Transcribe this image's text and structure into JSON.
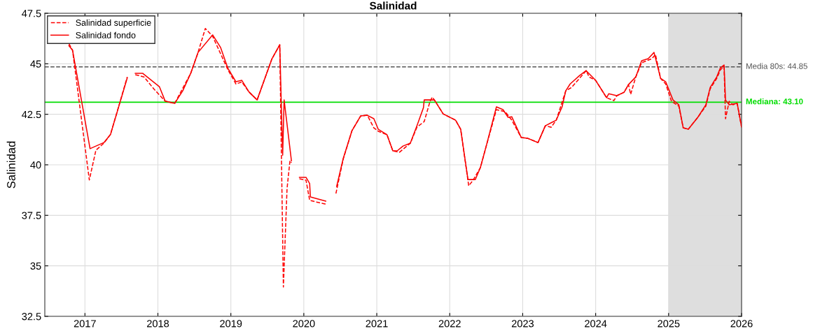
{
  "chart_data": {
    "type": "line",
    "title": "Salinidad",
    "ylabel": "Salinidad",
    "xlim": [
      2016.45,
      2026
    ],
    "xticks": [
      2017,
      2018,
      2019,
      2020,
      2021,
      2022,
      2023,
      2024,
      2025,
      2026
    ],
    "ylim": [
      32.5,
      47.5
    ],
    "yticks": [
      32.5,
      35,
      37.5,
      40,
      42.5,
      45,
      47.5
    ],
    "grid": true,
    "legend": "top left",
    "series": [
      {
        "name": "Salinidad superficie",
        "color": "#ff0000",
        "line_style": "dashed",
        "x": [
          2016.78,
          2016.83,
          2017.06,
          2017.15,
          2017.26,
          2017.35,
          2017.58,
          null,
          2017.69,
          2017.81,
          2017.95,
          2018.1,
          2018.23,
          2018.45,
          2018.55,
          2018.65,
          2018.75,
          2018.96,
          2019.07,
          2019.15,
          2019.25,
          2019.36,
          2019.56,
          2019.67,
          2019.72,
          2019.77,
          2019.81,
          2019.83,
          null,
          2019.94,
          2020.03,
          2020.08,
          2020.3,
          null,
          2020.44,
          2020.54,
          2020.66,
          2020.78,
          2020.87,
          2020.96,
          2021.02,
          2021.14,
          2021.22,
          2021.31,
          2021.46,
          2021.55,
          2021.65,
          2021.73,
          2021.76,
          2021.79,
          2021.91,
          2022.08,
          2022.15,
          2022.26,
          2022.32,
          2022.42,
          2022.49,
          2022.64,
          2022.76,
          2022.85,
          2022.98,
          2023.07,
          2023.21,
          2023.31,
          2023.39,
          2023.46,
          2023.59,
          2023.67,
          2023.87,
          2023.91,
          2024.0,
          2024.15,
          2024.25,
          2024.29,
          2024.39,
          2024.45,
          2024.48,
          2024.55,
          2024.63,
          2024.77,
          2024.82,
          2024.89,
          2024.96,
          2025.04,
          2025.14,
          2025.2,
          2025.27,
          2025.4,
          2025.51,
          2025.57,
          2025.66,
          2025.71,
          2025.76,
          2025.78,
          2025.83,
          2025.88,
          2025.94,
          2026.0
        ],
        "values": [
          46.0,
          45.67,
          39.25,
          40.72,
          41.07,
          41.5,
          44.35,
          null,
          44.46,
          44.35,
          43.73,
          43.15,
          43.04,
          44.53,
          45.56,
          46.75,
          46.36,
          44.7,
          44.0,
          44.1,
          43.6,
          43.21,
          45.22,
          45.94,
          33.95,
          38.82,
          40.2,
          40.1,
          null,
          39.31,
          39.24,
          38.24,
          38.05,
          null,
          38.58,
          40.28,
          41.69,
          42.42,
          42.45,
          41.83,
          41.66,
          41.49,
          40.69,
          40.62,
          41.07,
          41.86,
          42.14,
          43.14,
          43.35,
          43.21,
          42.52,
          42.21,
          41.76,
          38.96,
          39.24,
          39.86,
          40.79,
          42.73,
          42.63,
          42.21,
          41.35,
          41.31,
          41.1,
          41.93,
          41.86,
          42.21,
          43.66,
          43.83,
          44.66,
          44.35,
          44.18,
          43.32,
          43.18,
          43.42,
          43.59,
          43.97,
          43.49,
          44.35,
          45.05,
          45.25,
          45.46,
          44.28,
          44.0,
          43.14,
          42.9,
          41.83,
          41.76,
          42.35,
          42.9,
          43.76,
          44.28,
          44.7,
          44.87,
          42.28,
          43.14,
          42.97,
          43.04,
          41.87
        ]
      },
      {
        "name": "Salinidad fondo",
        "color": "#f80000",
        "line_style": "solid",
        "x": [
          2016.78,
          2016.83,
          2017.07,
          2017.26,
          2017.35,
          2017.58,
          null,
          2017.69,
          2017.79,
          2018.02,
          2018.1,
          2018.23,
          2018.34,
          2018.45,
          2018.55,
          2018.75,
          2018.86,
          2018.96,
          2019.07,
          2019.15,
          2019.25,
          2019.36,
          2019.56,
          2019.67,
          2019.71,
          2019.73,
          2019.83,
          null,
          2019.94,
          2020.03,
          2020.08,
          2020.09,
          2020.3,
          null,
          2020.45,
          2020.54,
          2020.66,
          2020.78,
          2020.87,
          2020.96,
          2021.02,
          2021.14,
          2021.22,
          2021.28,
          2021.36,
          2021.46,
          2021.55,
          2021.64,
          2021.65,
          2021.79,
          2021.91,
          2022.08,
          2022.15,
          2022.25,
          2022.35,
          2022.42,
          2022.49,
          2022.64,
          2022.73,
          2022.8,
          2022.85,
          2022.98,
          2023.07,
          2023.21,
          2023.31,
          2023.4,
          2023.46,
          2023.54,
          2023.59,
          2023.65,
          2023.78,
          2023.87,
          2024.0,
          2024.15,
          2024.18,
          2024.29,
          2024.39,
          2024.45,
          2024.55,
          2024.63,
          2024.72,
          2024.8,
          2024.89,
          2024.96,
          2025.06,
          2025.14,
          2025.2,
          2025.27,
          2025.4,
          2025.51,
          2025.57,
          2025.66,
          2025.71,
          2025.76,
          2025.78,
          2025.83,
          2025.94,
          2026.0
        ],
        "values": [
          45.9,
          45.67,
          40.8,
          41.1,
          41.5,
          44.3,
          null,
          44.53,
          44.53,
          43.87,
          43.15,
          43.04,
          43.66,
          44.53,
          45.56,
          46.43,
          45.8,
          44.77,
          44.11,
          44.18,
          43.6,
          43.21,
          45.22,
          45.94,
          40.48,
          43.21,
          40.2,
          null,
          39.38,
          39.38,
          39.07,
          38.41,
          38.2,
          null,
          38.93,
          40.31,
          41.69,
          42.42,
          42.45,
          42.28,
          41.76,
          41.49,
          40.69,
          40.69,
          40.93,
          41.07,
          41.93,
          42.83,
          43.21,
          43.21,
          42.52,
          42.21,
          41.76,
          39.27,
          39.27,
          39.86,
          40.79,
          42.87,
          42.73,
          42.35,
          42.38,
          41.35,
          41.31,
          41.1,
          41.93,
          42.1,
          42.21,
          42.87,
          43.66,
          44.0,
          44.42,
          44.66,
          44.18,
          43.32,
          43.52,
          43.42,
          43.59,
          43.97,
          44.35,
          45.15,
          45.25,
          45.56,
          44.28,
          44.11,
          43.21,
          42.97,
          41.83,
          41.76,
          42.35,
          42.97,
          43.83,
          44.35,
          44.8,
          44.94,
          43.21,
          42.97,
          43.04,
          41.87
        ]
      }
    ],
    "ref_lines": [
      {
        "axis": "y",
        "value": 44.85,
        "label": "Media 80s: 44.85",
        "color": "#555555",
        "line_style": "dashed"
      },
      {
        "axis": "y",
        "value": 43.1,
        "label": "Mediana: 43.10",
        "color": "#00dd00",
        "line_style": "solid"
      }
    ],
    "bands": [
      {
        "axis": "x",
        "from": 2025,
        "to": 2026,
        "color": "#dedede"
      }
    ]
  }
}
